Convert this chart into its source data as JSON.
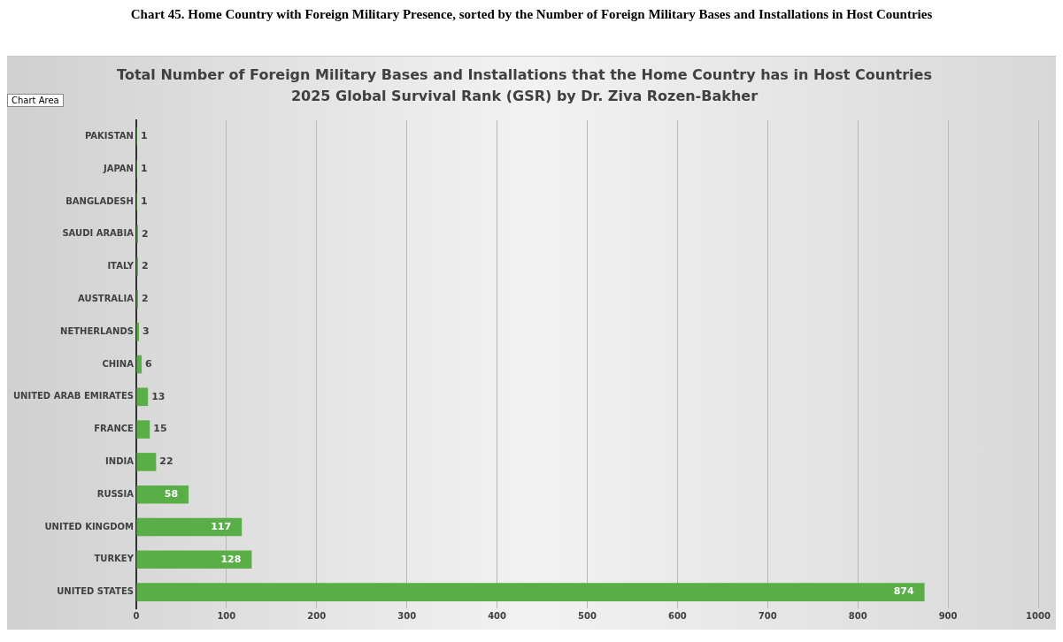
{
  "chart_data": {
    "type": "bar",
    "orientation": "horizontal",
    "title": "Chart 45. Home Country with Foreign Military Presence, sorted by the Number of Foreign Military Bases and Installations in Host Countries",
    "subtitle": "Total Number of Foreign Military Bases and Installations that the Home Country has in Host Countries\n2025 Global Survival Rank (GSR) by Dr. Ziva Rozen-Bakher",
    "annotations": [
      "Chart Area"
    ],
    "categories": [
      "PAKISTAN",
      "JAPAN",
      "BANGLADESH",
      "SAUDI ARABIA",
      "ITALY",
      "AUSTRALIA",
      "NETHERLANDS",
      "CHINA",
      "UNITED ARAB EMIRATES",
      "FRANCE",
      "INDIA",
      "RUSSIA",
      "UNITED KINGDOM",
      "TURKEY",
      "UNITED STATES"
    ],
    "values": [
      1,
      1,
      1,
      2,
      2,
      2,
      3,
      6,
      13,
      15,
      22,
      58,
      117,
      128,
      874
    ],
    "color": "#5aae48",
    "xlim": [
      0,
      1000
    ],
    "xticks": [
      0,
      100,
      200,
      300,
      400,
      500,
      600,
      700,
      800,
      900,
      1000
    ],
    "grid": "x",
    "legend": false,
    "data_labels": true
  }
}
